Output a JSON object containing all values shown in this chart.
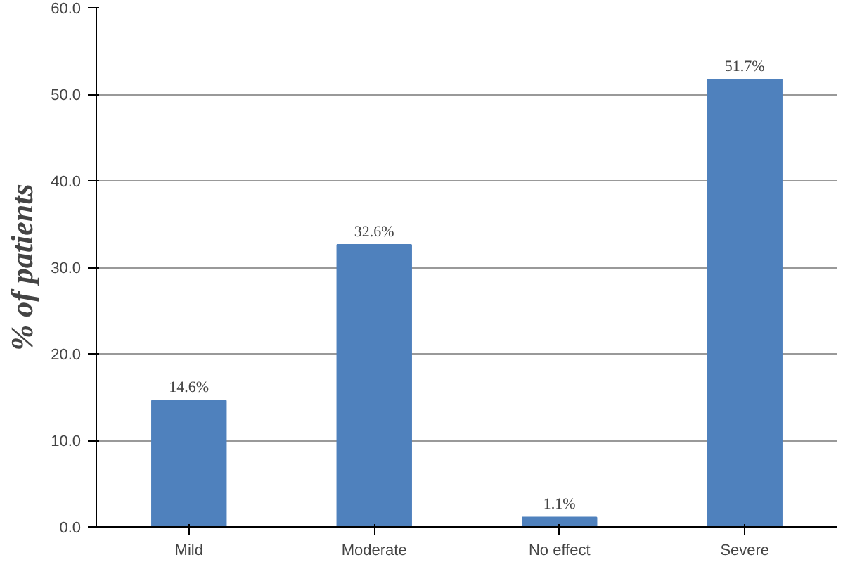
{
  "chart_data": {
    "type": "bar",
    "ylabel": "% of patients",
    "categories": [
      "Mild",
      "Moderate",
      "No effect",
      "Severe"
    ],
    "values": [
      14.6,
      32.6,
      1.1,
      51.7
    ],
    "value_labels": [
      "14.6%",
      "32.6%",
      "1.1%",
      "51.7%"
    ],
    "color": "#4f81bd",
    "ylim": [
      0,
      60
    ],
    "yticks": [
      {
        "value": 0,
        "label": "0.0"
      },
      {
        "value": 10,
        "label": "10.0"
      },
      {
        "value": 20,
        "label": "20.0"
      },
      {
        "value": 30,
        "label": "30.0"
      },
      {
        "value": 40,
        "label": "40.0"
      },
      {
        "value": 50,
        "label": "50.0"
      },
      {
        "value": 60,
        "label": "60.0"
      }
    ],
    "grid": "y"
  }
}
